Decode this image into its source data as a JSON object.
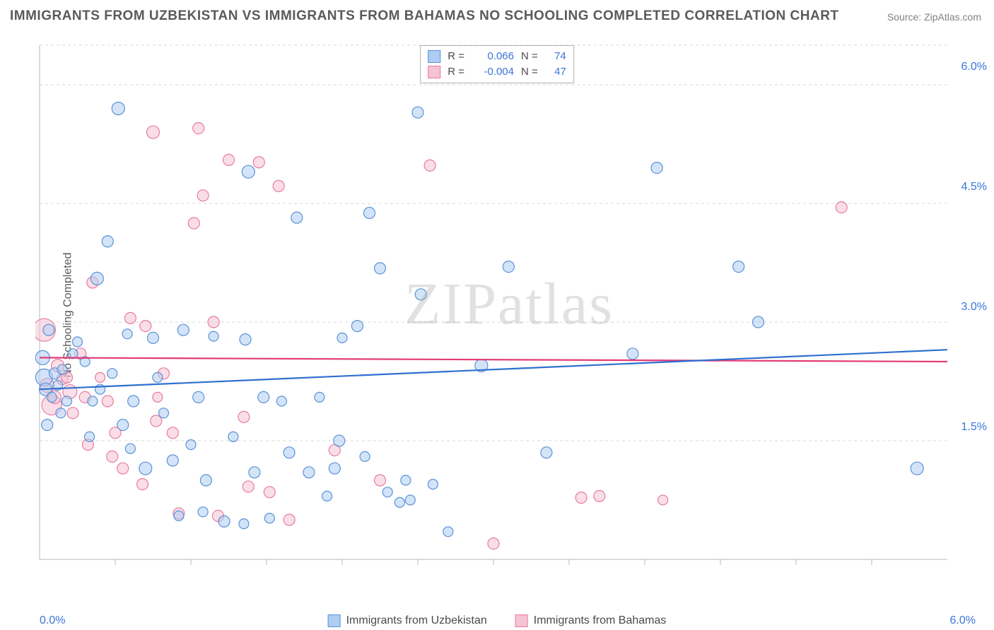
{
  "title": "IMMIGRANTS FROM UZBEKISTAN VS IMMIGRANTS FROM BAHAMAS NO SCHOOLING COMPLETED CORRELATION CHART",
  "source": "Source: ZipAtlas.com",
  "watermark": "ZIPatlas",
  "ylabel": "No Schooling Completed",
  "chart": {
    "type": "scatter",
    "xlim": [
      0,
      6
    ],
    "ylim": [
      0,
      6.5
    ],
    "background_color": "#ffffff",
    "grid_color": "#d8d8d8",
    "grid_dash": "4,4",
    "axis_color": "#b8b8b8",
    "tick_color": "#3b74d8",
    "tick_fontsize": 16,
    "label_fontsize": 16,
    "label_color": "#5a5a5a",
    "y_gridlines": [
      1.5,
      3.0,
      4.5,
      6.0,
      6.5
    ],
    "y_ticklabels": [
      "1.5%",
      "3.0%",
      "4.5%",
      "6.0%"
    ],
    "y_tickvals": [
      1.5,
      3.0,
      4.5,
      6.0
    ],
    "x_axis_ticks": [
      0.5,
      1.0,
      1.5,
      2.0,
      2.5,
      3.0,
      3.5,
      4.0,
      4.5,
      5.0,
      5.5
    ],
    "x_ticklabel_left": "0.0%",
    "x_ticklabel_right": "6.0%",
    "series": {
      "uzbekistan": {
        "label": "Immigrants from Uzbekistan",
        "fill": "#aecdf2",
        "stroke": "#5b92d6",
        "fill_opacity": 0.55,
        "line_color": "#2f6fd0",
        "line_width": 2.2,
        "trend": {
          "y_at_x0": 2.15,
          "y_at_xmax": 2.65
        },
        "stats": {
          "R": "0.066",
          "N": "74"
        },
        "points": [
          {
            "x": 0.02,
            "y": 2.55,
            "r": 10
          },
          {
            "x": 0.03,
            "y": 2.3,
            "r": 12
          },
          {
            "x": 0.04,
            "y": 2.15,
            "r": 9
          },
          {
            "x": 0.05,
            "y": 1.7,
            "r": 8
          },
          {
            "x": 0.08,
            "y": 2.05,
            "r": 7
          },
          {
            "x": 0.1,
            "y": 2.35,
            "r": 8
          },
          {
            "x": 0.12,
            "y": 2.2,
            "r": 7
          },
          {
            "x": 0.15,
            "y": 2.4,
            "r": 7
          },
          {
            "x": 0.18,
            "y": 2.0,
            "r": 7
          },
          {
            "x": 0.22,
            "y": 2.6,
            "r": 7
          },
          {
            "x": 0.38,
            "y": 3.55,
            "r": 9
          },
          {
            "x": 0.4,
            "y": 2.15,
            "r": 7
          },
          {
            "x": 0.45,
            "y": 4.02,
            "r": 8
          },
          {
            "x": 0.52,
            "y": 5.7,
            "r": 9
          },
          {
            "x": 0.55,
            "y": 1.7,
            "r": 8
          },
          {
            "x": 0.58,
            "y": 2.85,
            "r": 7
          },
          {
            "x": 0.62,
            "y": 2.0,
            "r": 8
          },
          {
            "x": 0.7,
            "y": 1.15,
            "r": 9
          },
          {
            "x": 0.75,
            "y": 2.8,
            "r": 8
          },
          {
            "x": 0.88,
            "y": 1.25,
            "r": 8
          },
          {
            "x": 0.92,
            "y": 0.55,
            "r": 7
          },
          {
            "x": 0.95,
            "y": 2.9,
            "r": 8
          },
          {
            "x": 1.0,
            "y": 1.45,
            "r": 7
          },
          {
            "x": 1.05,
            "y": 2.05,
            "r": 8
          },
          {
            "x": 1.1,
            "y": 1.0,
            "r": 8
          },
          {
            "x": 1.15,
            "y": 2.82,
            "r": 7
          },
          {
            "x": 1.22,
            "y": 0.48,
            "r": 8
          },
          {
            "x": 1.28,
            "y": 1.55,
            "r": 7
          },
          {
            "x": 1.35,
            "y": 0.45,
            "r": 7
          },
          {
            "x": 1.36,
            "y": 2.78,
            "r": 8
          },
          {
            "x": 1.38,
            "y": 4.9,
            "r": 9
          },
          {
            "x": 1.42,
            "y": 1.1,
            "r": 8
          },
          {
            "x": 1.48,
            "y": 2.05,
            "r": 8
          },
          {
            "x": 1.52,
            "y": 0.52,
            "r": 7
          },
          {
            "x": 1.65,
            "y": 1.35,
            "r": 8
          },
          {
            "x": 1.7,
            "y": 4.32,
            "r": 8
          },
          {
            "x": 1.78,
            "y": 1.1,
            "r": 8
          },
          {
            "x": 1.85,
            "y": 2.05,
            "r": 7
          },
          {
            "x": 1.9,
            "y": 0.8,
            "r": 7
          },
          {
            "x": 1.95,
            "y": 1.15,
            "r": 8
          },
          {
            "x": 1.98,
            "y": 1.5,
            "r": 8
          },
          {
            "x": 2.1,
            "y": 2.95,
            "r": 8
          },
          {
            "x": 2.15,
            "y": 1.3,
            "r": 7
          },
          {
            "x": 2.18,
            "y": 4.38,
            "r": 8
          },
          {
            "x": 2.25,
            "y": 3.68,
            "r": 8
          },
          {
            "x": 2.3,
            "y": 0.85,
            "r": 7
          },
          {
            "x": 2.38,
            "y": 0.72,
            "r": 7
          },
          {
            "x": 2.42,
            "y": 1.0,
            "r": 7
          },
          {
            "x": 2.45,
            "y": 0.75,
            "r": 7
          },
          {
            "x": 2.5,
            "y": 5.65,
            "r": 8
          },
          {
            "x": 2.52,
            "y": 3.35,
            "r": 8
          },
          {
            "x": 2.7,
            "y": 0.35,
            "r": 7
          },
          {
            "x": 2.92,
            "y": 2.45,
            "r": 9
          },
          {
            "x": 3.1,
            "y": 3.7,
            "r": 8
          },
          {
            "x": 3.35,
            "y": 1.35,
            "r": 8
          },
          {
            "x": 3.92,
            "y": 2.6,
            "r": 8
          },
          {
            "x": 4.08,
            "y": 4.95,
            "r": 8
          },
          {
            "x": 4.62,
            "y": 3.7,
            "r": 8
          },
          {
            "x": 4.75,
            "y": 3.0,
            "r": 8
          },
          {
            "x": 5.8,
            "y": 1.15,
            "r": 9
          },
          {
            "x": 0.3,
            "y": 2.5,
            "r": 7
          },
          {
            "x": 0.35,
            "y": 2.0,
            "r": 7
          },
          {
            "x": 0.48,
            "y": 2.35,
            "r": 7
          },
          {
            "x": 0.6,
            "y": 1.4,
            "r": 7
          },
          {
            "x": 0.78,
            "y": 2.3,
            "r": 7
          },
          {
            "x": 0.82,
            "y": 1.85,
            "r": 7
          },
          {
            "x": 1.08,
            "y": 0.6,
            "r": 7
          },
          {
            "x": 1.6,
            "y": 2.0,
            "r": 7
          },
          {
            "x": 2.0,
            "y": 2.8,
            "r": 7
          },
          {
            "x": 2.6,
            "y": 0.95,
            "r": 7
          },
          {
            "x": 0.06,
            "y": 2.9,
            "r": 8
          },
          {
            "x": 0.14,
            "y": 1.85,
            "r": 7
          },
          {
            "x": 0.25,
            "y": 2.75,
            "r": 7
          },
          {
            "x": 0.33,
            "y": 1.55,
            "r": 7
          }
        ]
      },
      "bahamas": {
        "label": "Immigrants from Bahamas",
        "fill": "#f6c3d3",
        "stroke": "#e77ba2",
        "fill_opacity": 0.55,
        "line_color": "#e23b78",
        "line_width": 2.2,
        "trend": {
          "y_at_x0": 2.55,
          "y_at_xmax": 2.5
        },
        "stats": {
          "R": "-0.004",
          "N": "47"
        },
        "points": [
          {
            "x": 0.03,
            "y": 2.9,
            "r": 16
          },
          {
            "x": 0.05,
            "y": 2.2,
            "r": 10
          },
          {
            "x": 0.08,
            "y": 1.95,
            "r": 14
          },
          {
            "x": 0.12,
            "y": 2.45,
            "r": 9
          },
          {
            "x": 0.15,
            "y": 2.28,
            "r": 8
          },
          {
            "x": 0.2,
            "y": 2.12,
            "r": 10
          },
          {
            "x": 0.22,
            "y": 1.85,
            "r": 8
          },
          {
            "x": 0.3,
            "y": 2.05,
            "r": 8
          },
          {
            "x": 0.32,
            "y": 1.45,
            "r": 8
          },
          {
            "x": 0.35,
            "y": 3.5,
            "r": 8
          },
          {
            "x": 0.45,
            "y": 2.0,
            "r": 8
          },
          {
            "x": 0.48,
            "y": 1.3,
            "r": 8
          },
          {
            "x": 0.55,
            "y": 1.15,
            "r": 8
          },
          {
            "x": 0.6,
            "y": 3.05,
            "r": 8
          },
          {
            "x": 0.68,
            "y": 0.95,
            "r": 8
          },
          {
            "x": 0.7,
            "y": 2.95,
            "r": 8
          },
          {
            "x": 0.75,
            "y": 5.4,
            "r": 9
          },
          {
            "x": 0.77,
            "y": 1.75,
            "r": 8
          },
          {
            "x": 0.78,
            "y": 2.05,
            "r": 7
          },
          {
            "x": 0.82,
            "y": 2.35,
            "r": 8
          },
          {
            "x": 0.92,
            "y": 0.58,
            "r": 8
          },
          {
            "x": 1.02,
            "y": 4.25,
            "r": 8
          },
          {
            "x": 1.05,
            "y": 5.45,
            "r": 8
          },
          {
            "x": 1.08,
            "y": 4.6,
            "r": 8
          },
          {
            "x": 1.15,
            "y": 3.0,
            "r": 8
          },
          {
            "x": 1.18,
            "y": 0.55,
            "r": 8
          },
          {
            "x": 1.25,
            "y": 5.05,
            "r": 8
          },
          {
            "x": 1.35,
            "y": 1.8,
            "r": 8
          },
          {
            "x": 1.38,
            "y": 0.92,
            "r": 8
          },
          {
            "x": 1.45,
            "y": 5.02,
            "r": 8
          },
          {
            "x": 1.52,
            "y": 0.85,
            "r": 8
          },
          {
            "x": 1.58,
            "y": 4.72,
            "r": 8
          },
          {
            "x": 1.65,
            "y": 0.5,
            "r": 8
          },
          {
            "x": 1.95,
            "y": 1.38,
            "r": 8
          },
          {
            "x": 2.25,
            "y": 1.0,
            "r": 8
          },
          {
            "x": 2.58,
            "y": 4.98,
            "r": 8
          },
          {
            "x": 3.0,
            "y": 0.2,
            "r": 8
          },
          {
            "x": 3.58,
            "y": 0.78,
            "r": 8
          },
          {
            "x": 3.7,
            "y": 0.8,
            "r": 8
          },
          {
            "x": 4.12,
            "y": 0.75,
            "r": 7
          },
          {
            "x": 5.3,
            "y": 4.45,
            "r": 8
          },
          {
            "x": 0.1,
            "y": 2.05,
            "r": 9
          },
          {
            "x": 0.18,
            "y": 2.3,
            "r": 8
          },
          {
            "x": 0.27,
            "y": 2.6,
            "r": 8
          },
          {
            "x": 0.4,
            "y": 2.3,
            "r": 7
          },
          {
            "x": 0.5,
            "y": 1.6,
            "r": 8
          },
          {
            "x": 0.88,
            "y": 1.6,
            "r": 8
          }
        ]
      }
    }
  },
  "top_legend": {
    "rows": [
      {
        "swatch_fill": "#aecdf2",
        "swatch_stroke": "#5b92d6",
        "R_label": "R =",
        "R": "0.066",
        "N_label": "N =",
        "N": "74"
      },
      {
        "swatch_fill": "#f6c3d3",
        "swatch_stroke": "#e77ba2",
        "R_label": "R =",
        "R": "-0.004",
        "N_label": "N =",
        "N": "47"
      }
    ]
  },
  "bottom_legend": {
    "items": [
      {
        "fill": "#aecdf2",
        "stroke": "#5b92d6",
        "label": "Immigrants from Uzbekistan"
      },
      {
        "fill": "#f6c3d3",
        "stroke": "#e77ba2",
        "label": "Immigrants from Bahamas"
      }
    ]
  }
}
